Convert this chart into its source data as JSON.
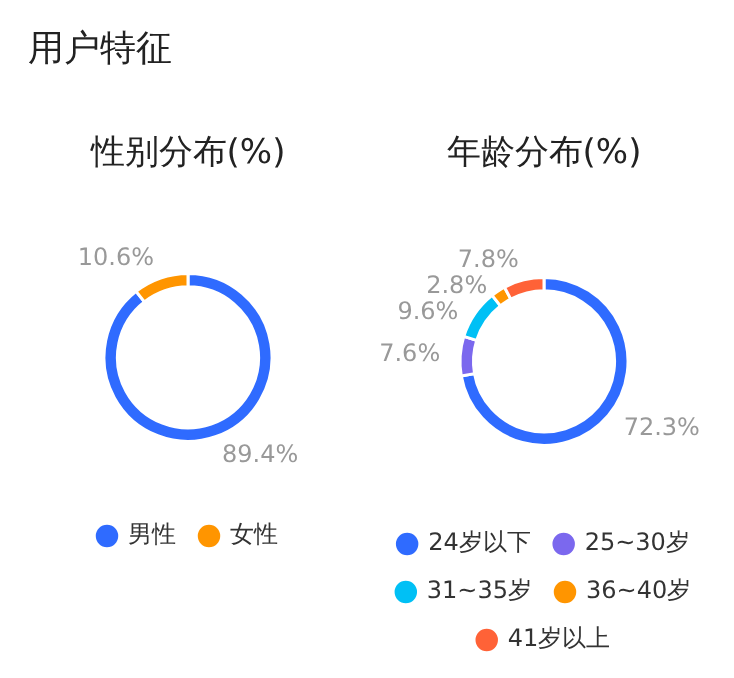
{
  "chart_data": [
    {
      "type": "donut",
      "title": "性别分布(%)",
      "annotations": [
        "用户特征"
      ],
      "categories": [
        "男性",
        "女性"
      ],
      "values": [
        89.4,
        10.6
      ],
      "colors": [
        "#2f6bff",
        "#ff9500"
      ],
      "value_labels": [
        "89.4%",
        "10.6%"
      ],
      "legend": "bottom"
    },
    {
      "type": "donut",
      "title": "年龄分布(%)",
      "categories": [
        "24岁以下",
        "25~30岁",
        "31~35岁",
        "36~40岁",
        "41岁以上"
      ],
      "values": [
        72.3,
        7.6,
        9.6,
        2.8,
        7.8
      ],
      "colors": [
        "#2f6bff",
        "#7b68ee",
        "#00c0f5",
        "#ff9500",
        "#ff6237"
      ],
      "value_labels": [
        "72.3%",
        "7.6%",
        "9.6%",
        "2.8%",
        "7.8%"
      ],
      "legend": "bottom"
    }
  ]
}
